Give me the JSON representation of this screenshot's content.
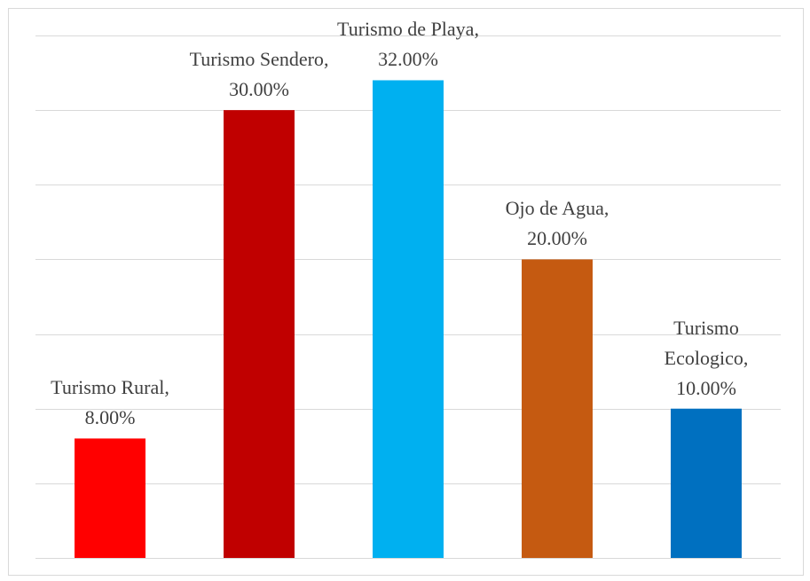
{
  "chart_data": {
    "type": "bar",
    "categories": [
      "Turismo Rural",
      "Turismo Sendero",
      "Turismo de Playa",
      "Ojo de Agua",
      "Turismo Ecologico"
    ],
    "values": [
      8,
      30,
      32,
      20,
      10
    ],
    "value_labels": [
      "8.00%",
      "30.00%",
      "32.00%",
      "20.00%",
      "10.00%"
    ],
    "label_separator": ", ",
    "colors": [
      "#ff0000",
      "#c00000",
      "#00b0f0",
      "#c55a11",
      "#0070c0"
    ],
    "ylim": [
      0,
      35
    ],
    "yticks": [
      0,
      5,
      10,
      15,
      20,
      25,
      30,
      35
    ],
    "grid": true
  }
}
